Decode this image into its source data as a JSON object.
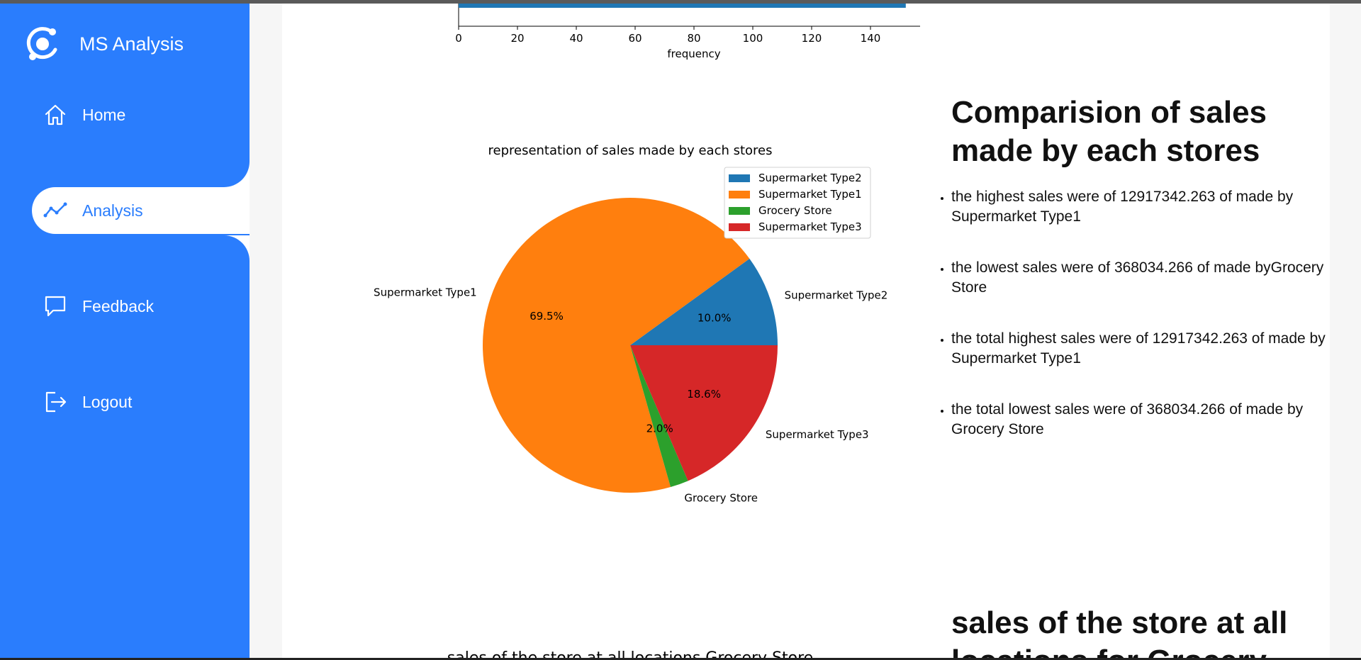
{
  "app": {
    "name": "MS Analysis"
  },
  "sidebar": {
    "items": [
      {
        "label": "Home",
        "icon": "home-icon",
        "active": false
      },
      {
        "label": "Analysis",
        "icon": "chart-line-icon",
        "active": true
      },
      {
        "label": "Feedback",
        "icon": "message-icon",
        "active": false
      },
      {
        "label": "Logout",
        "icon": "logout-icon",
        "active": false
      }
    ]
  },
  "colors": {
    "sidebar": "#2a7dfd",
    "active_text": "#2a7dfd",
    "bar": "#1f77b4"
  },
  "top_chart": {
    "xlabel": "frequency",
    "xticks": [
      "0",
      "20",
      "40",
      "60",
      "80",
      "100",
      "120",
      "140"
    ],
    "visible_bar_value": 152
  },
  "chart_data": {
    "type": "pie",
    "title": "representation of sales made by each stores",
    "legend_placement": "top-right",
    "slices": [
      {
        "label": "Supermarket Type2",
        "percent": 10.0,
        "pct_label": "10.0%",
        "color": "#1f77b4"
      },
      {
        "label": "Supermarket Type1",
        "percent": 69.5,
        "pct_label": "69.5%",
        "color": "#ff7f0e"
      },
      {
        "label": "Grocery Store",
        "percent": 2.0,
        "pct_label": "2.0%",
        "color": "#2ca02c"
      },
      {
        "label": "Supermarket Type3",
        "percent": 18.6,
        "pct_label": "18.6%",
        "color": "#d62728"
      }
    ]
  },
  "panel": {
    "title": "Comparision of sales made by each stores",
    "bullets": [
      "the highest sales were of 12917342.263 of made by Supermarket Type1",
      "the lowest sales were of 368034.266 of made byGrocery Store",
      "the total highest sales were of 12917342.263 of made by Supermarket Type1",
      "the total lowest sales were of 368034.266 of made by Grocery Store"
    ]
  },
  "next_section": {
    "title": "sales of the store at all locations for Grocery Store",
    "chart_title": "sales of the store at all locations Grocery Store"
  }
}
